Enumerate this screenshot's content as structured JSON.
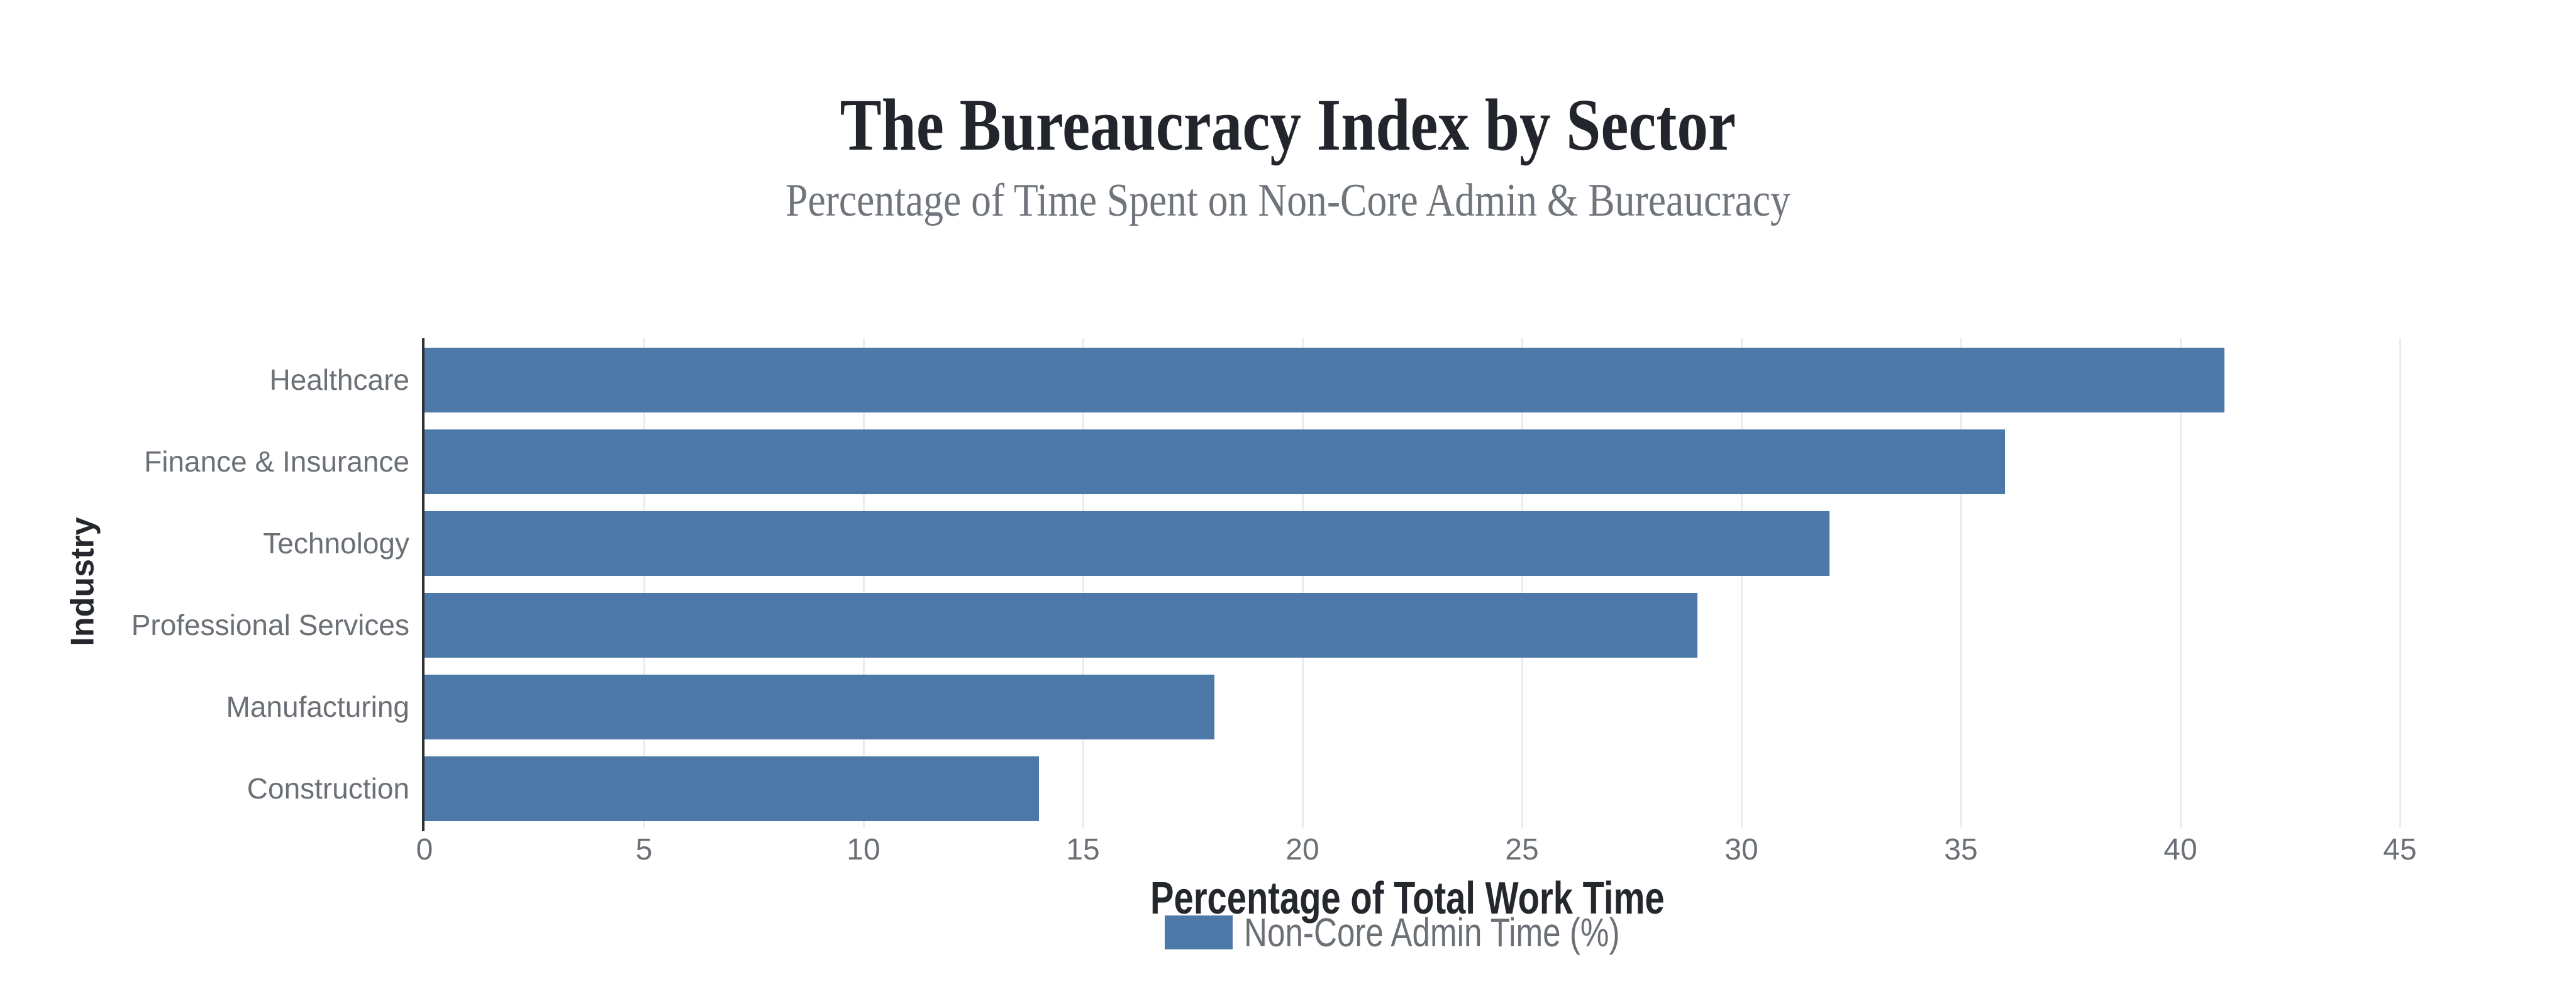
{
  "chart_data": {
    "type": "bar",
    "orientation": "horizontal",
    "title": "The Bureaucracy Index by Sector",
    "subtitle": "Percentage of Time Spent on Non-Core Admin & Bureaucracy",
    "categories": [
      "Healthcare",
      "Finance & Insurance",
      "Technology",
      "Professional Services",
      "Manufacturing",
      "Construction"
    ],
    "series": [
      {
        "name": "Non-Core Admin Time (%)",
        "values": [
          41,
          36,
          32,
          29,
          18,
          14
        ]
      }
    ],
    "xlabel": "Percentage of Total Work Time",
    "ylabel": "Industry",
    "x_ticks": [
      0,
      5,
      10,
      15,
      20,
      25,
      30,
      35,
      40,
      45
    ],
    "xlim": [
      0,
      45
    ],
    "grid": "vertical",
    "legend": {
      "position": "bottom",
      "entries": [
        {
          "label": "Non-Core Admin Time (%)",
          "color": "#4d79a8"
        }
      ]
    },
    "colors": {
      "bar": "#4d79a8",
      "axis_line": "#2e3135",
      "gridline": "#e9ebee",
      "title": "#22252b",
      "subtitle": "#70757c",
      "labels": "#6b7076"
    }
  }
}
